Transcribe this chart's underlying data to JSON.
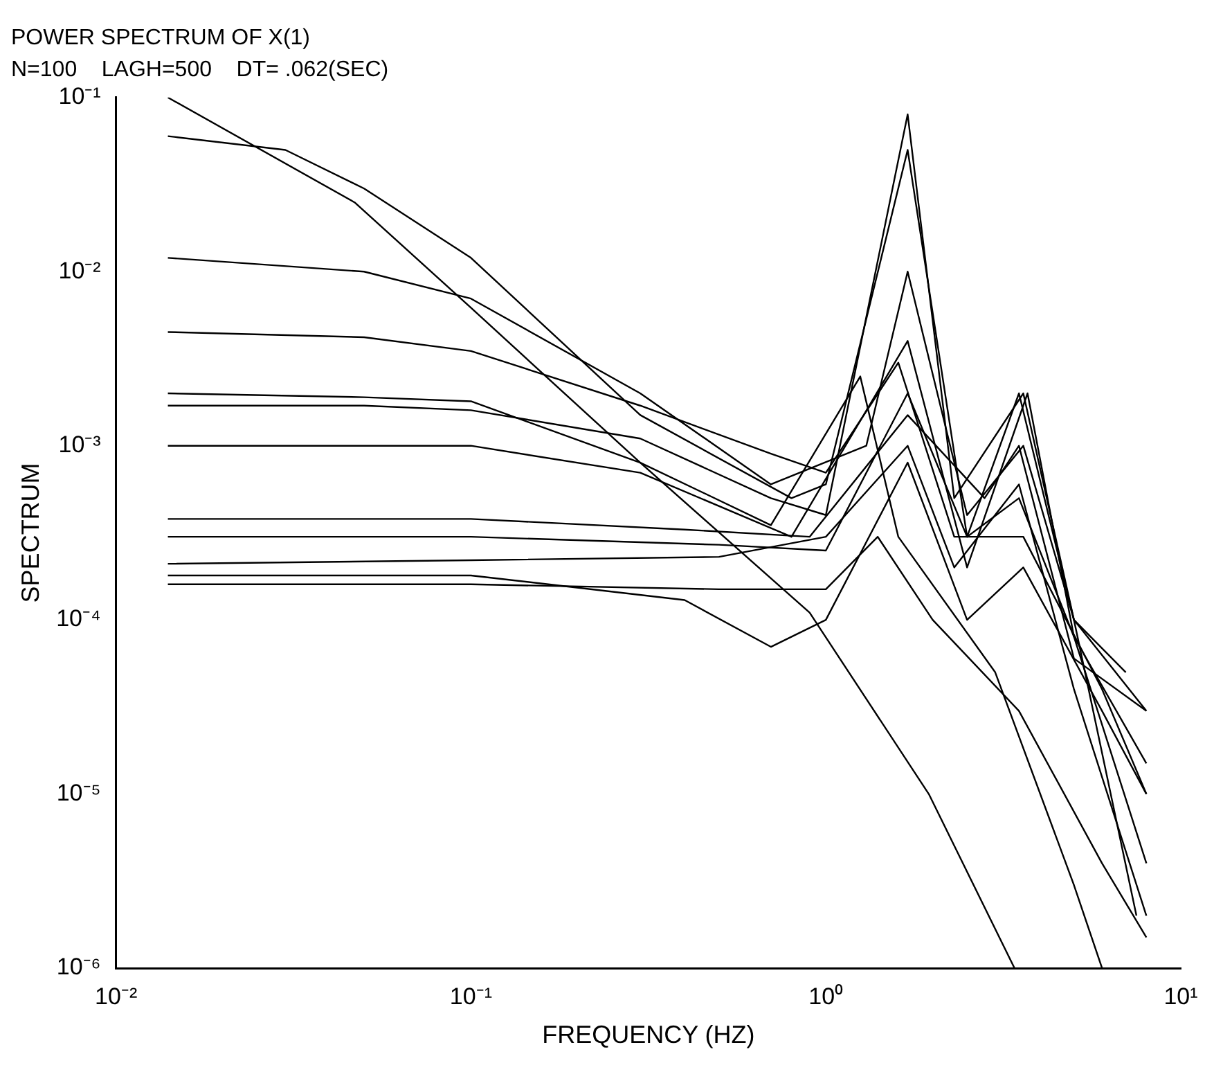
{
  "chart_data": {
    "type": "line",
    "title": "POWER SPECTRUM OF X(1)",
    "subtitle": "N=100    LAGH=500    DT= .062(SEC)",
    "xlabel": "FREQUENCY (HZ)",
    "ylabel": "SPECTRUM",
    "log": "xy",
    "grid": false,
    "legend": false,
    "marker": "none",
    "line_style": "solid",
    "xlim": [
      0.01,
      10
    ],
    "ylim": [
      1e-06,
      0.1
    ],
    "xticks": [
      {
        "value": 0.01,
        "label": "10⁻²"
      },
      {
        "value": 0.1,
        "label": "10⁻¹"
      },
      {
        "value": 1,
        "label": "10⁰"
      },
      {
        "value": 10,
        "label": "10¹"
      }
    ],
    "yticks": [
      {
        "value": 1e-06,
        "label": "10⁻⁶"
      },
      {
        "value": 1e-05,
        "label": "10⁻⁵"
      },
      {
        "value": 0.0001,
        "label": "10⁻⁴"
      },
      {
        "value": 0.001,
        "label": "10⁻³"
      },
      {
        "value": 0.01,
        "label": "10⁻²"
      },
      {
        "value": 0.1,
        "label": "10⁻¹"
      }
    ],
    "series": [
      {
        "color": "#000000",
        "x": [
          0.014,
          0.047,
          0.1,
          0.3,
          0.9,
          1.95,
          3.4
        ],
        "values": [
          0.1,
          0.025,
          0.0062,
          0.0008,
          0.00011,
          1e-05,
          1e-06
        ]
      },
      {
        "color": "#000000",
        "x": [
          0.014,
          0.03,
          0.05,
          0.1,
          0.3,
          0.8,
          1.0,
          1.7,
          2.5,
          3.5,
          5,
          7
        ],
        "values": [
          0.06,
          0.05,
          0.03,
          0.012,
          0.0015,
          0.0005,
          0.0006,
          0.05,
          0.0003,
          0.002,
          0.0001,
          5e-05
        ]
      },
      {
        "color": "#000000",
        "x": [
          0.014,
          0.05,
          0.1,
          0.3,
          0.7,
          1.3,
          1.7,
          2.5,
          3.6,
          5,
          8
        ],
        "values": [
          0.012,
          0.01,
          0.007,
          0.002,
          0.0006,
          0.001,
          0.01,
          0.0004,
          0.001,
          0.0001,
          3e-05
        ]
      },
      {
        "color": "#000000",
        "x": [
          0.014,
          0.05,
          0.1,
          0.3,
          0.7,
          1.0,
          1.6,
          2.3,
          3.6,
          6,
          8
        ],
        "values": [
          0.0045,
          0.0042,
          0.0035,
          0.0017,
          0.0009,
          0.0007,
          0.003,
          0.0003,
          0.0003,
          4e-05,
          1e-05
        ]
      },
      {
        "color": "#000000",
        "x": [
          0.014,
          0.05,
          0.1,
          0.3,
          0.7,
          1.25,
          1.6,
          3,
          5,
          6
        ],
        "values": [
          0.002,
          0.0019,
          0.0018,
          0.0008,
          0.00035,
          0.0025,
          0.0003,
          5e-05,
          3e-06,
          1e-06
        ]
      },
      {
        "color": "#000000",
        "x": [
          0.014,
          0.05,
          0.1,
          0.3,
          0.7,
          1.0,
          1.7,
          2.3,
          3.6,
          5,
          7.5
        ],
        "values": [
          0.0017,
          0.0017,
          0.0016,
          0.0011,
          0.0005,
          0.0004,
          0.08,
          0.0005,
          0.002,
          0.0001,
          2e-06
        ]
      },
      {
        "color": "#000000",
        "x": [
          0.014,
          0.05,
          0.1,
          0.3,
          0.8,
          1.7,
          2.5,
          3.7,
          5,
          8
        ],
        "values": [
          0.001,
          0.001,
          0.001,
          0.0007,
          0.0003,
          0.004,
          0.0002,
          0.002,
          8e-05,
          4e-06
        ]
      },
      {
        "color": "#000000",
        "x": [
          0.014,
          0.1,
          0.4,
          0.9,
          1.7,
          2.8,
          3.5,
          5,
          8
        ],
        "values": [
          0.00038,
          0.00038,
          0.00033,
          0.0003,
          0.0015,
          0.0005,
          0.001,
          6e-05,
          3e-05
        ]
      },
      {
        "color": "#000000",
        "x": [
          0.014,
          0.1,
          0.5,
          1.0,
          1.7,
          2.5,
          3.5,
          5,
          8
        ],
        "values": [
          0.0003,
          0.0003,
          0.00027,
          0.00025,
          0.002,
          0.0003,
          0.0005,
          8e-05,
          1.5e-05
        ]
      },
      {
        "color": "#000000",
        "x": [
          0.014,
          0.1,
          0.5,
          1.0,
          1.7,
          2.3,
          3.5,
          5,
          8
        ],
        "values": [
          0.00021,
          0.00022,
          0.00023,
          0.0003,
          0.001,
          0.0002,
          0.0006,
          4e-05,
          2e-06
        ]
      },
      {
        "color": "#000000",
        "x": [
          0.014,
          0.1,
          0.4,
          0.7,
          1.0,
          1.7,
          2.5,
          3.6,
          6,
          8
        ],
        "values": [
          0.00018,
          0.00018,
          0.00013,
          7e-05,
          0.0001,
          0.0008,
          0.0001,
          0.0002,
          3e-05,
          1e-05
        ]
      },
      {
        "color": "#000000",
        "x": [
          0.014,
          0.1,
          0.5,
          1.0,
          1.4,
          2,
          3.5,
          6,
          8
        ],
        "values": [
          0.00016,
          0.00016,
          0.00015,
          0.00015,
          0.0003,
          0.0001,
          3e-05,
          4e-06,
          1.5e-06
        ]
      }
    ]
  }
}
